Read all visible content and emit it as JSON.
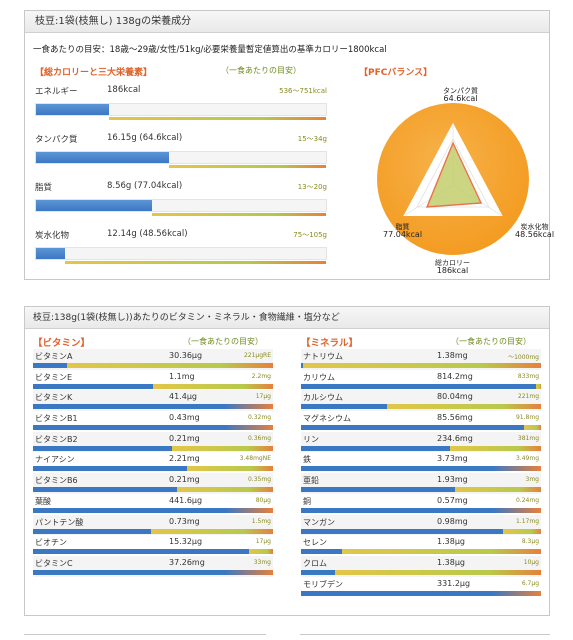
{
  "panel1": {
    "title": "枝豆:1袋(枝無し) 138gの栄養成分",
    "subtitle": "一食あたりの目安：18歳〜29歳/女性/51kg/必要栄養量暫定値算出の基準カロリー1800kcal",
    "section_label": "【総カロリーと三大栄養素】",
    "per_meal_label": "（一食あたりの目安）",
    "pfc_label": "【PFCバランス】",
    "macros": [
      {
        "label": "エネルギー",
        "value": "186kcal",
        "target": "536〜751kcal",
        "fraction": 0.25
      },
      {
        "label": "タンパク質",
        "value": "16.15g (64.6kcal)",
        "target": "15〜34g",
        "fraction": 0.46
      },
      {
        "label": "脂質",
        "value": "8.56g (77.04kcal)",
        "target": "13〜20g",
        "fraction": 0.4
      },
      {
        "label": "炭水化物",
        "value": "12.14g (48.56kcal)",
        "target": "75〜105g",
        "fraction": 0.1
      }
    ],
    "pfc": {
      "protein_label": "タンパク質",
      "protein_value": "64.6kcal",
      "fat_label": "脂質",
      "fat_value": "77.04kcal",
      "carb_label": "炭水化物",
      "carb_value": "48.56kcal",
      "total_label": "総カロリー",
      "total_value": "186kcal",
      "colors": {
        "disc": "#f39a1f",
        "disc_light": "#f7b24a",
        "inner": "#c4ce6c",
        "ring": "#e85a2a"
      }
    }
  },
  "panel2": {
    "title": "枝豆:138g(1袋(枝無し))あたりのビタミン・ミネラル・食物繊維・塩分など",
    "vitamin_header": "【ビタミン】",
    "mineral_header": "【ミネラル】",
    "per_meal_label": "（一食あたりの目安）",
    "vitamins": [
      {
        "label": "ビタミンA",
        "value": "30.36μg",
        "target": "221μgRE",
        "fraction": 0.14
      },
      {
        "label": "ビタミンE",
        "value": "1.1mg",
        "target": "2.2mg",
        "fraction": 0.5
      },
      {
        "label": "ビタミンK",
        "value": "41.4μg",
        "target": "17μg",
        "fraction": 1.0
      },
      {
        "label": "ビタミンB1",
        "value": "0.43mg",
        "target": "0.32mg",
        "fraction": 1.0
      },
      {
        "label": "ビタミンB2",
        "value": "0.21mg",
        "target": "0.36mg",
        "fraction": 0.58
      },
      {
        "label": "ナイアシン",
        "value": "2.21mg",
        "target": "3.48mgNE",
        "fraction": 0.64
      },
      {
        "label": "ビタミンB6",
        "value": "0.21mg",
        "target": "0.35mg",
        "fraction": 0.6
      },
      {
        "label": "葉酸",
        "value": "441.6μg",
        "target": "80μg",
        "fraction": 1.0
      },
      {
        "label": "パントテン酸",
        "value": "0.73mg",
        "target": "1.5mg",
        "fraction": 0.49
      },
      {
        "label": "ビオチン",
        "value": "15.32μg",
        "target": "17μg",
        "fraction": 0.9
      },
      {
        "label": "ビタミンC",
        "value": "37.26mg",
        "target": "33mg",
        "fraction": 1.0
      }
    ],
    "minerals": [
      {
        "label": "ナトリウム",
        "value": "1.38mg",
        "target": "〜1000mg",
        "fraction": 0.01
      },
      {
        "label": "カリウム",
        "value": "814.2mg",
        "target": "833mg",
        "fraction": 0.98
      },
      {
        "label": "カルシウム",
        "value": "80.04mg",
        "target": "221mg",
        "fraction": 0.36
      },
      {
        "label": "マグネシウム",
        "value": "85.56mg",
        "target": "91.8mg",
        "fraction": 0.93
      },
      {
        "label": "リン",
        "value": "234.6mg",
        "target": "381mg",
        "fraction": 0.62
      },
      {
        "label": "鉄",
        "value": "3.73mg",
        "target": "3.49mg",
        "fraction": 1.0
      },
      {
        "label": "亜鉛",
        "value": "1.93mg",
        "target": "3mg",
        "fraction": 0.64
      },
      {
        "label": "銅",
        "value": "0.57mg",
        "target": "0.24mg",
        "fraction": 1.0
      },
      {
        "label": "マンガン",
        "value": "0.98mg",
        "target": "1.17mg",
        "fraction": 0.84
      },
      {
        "label": "セレン",
        "value": "1.38μg",
        "target": "8.3μg",
        "fraction": 0.17
      },
      {
        "label": "クロム",
        "value": "1.38μg",
        "target": "10μg",
        "fraction": 0.14
      },
      {
        "label": "モリブデン",
        "value": "331.2μg",
        "target": "6.7μg",
        "fraction": 1.0
      }
    ]
  }
}
